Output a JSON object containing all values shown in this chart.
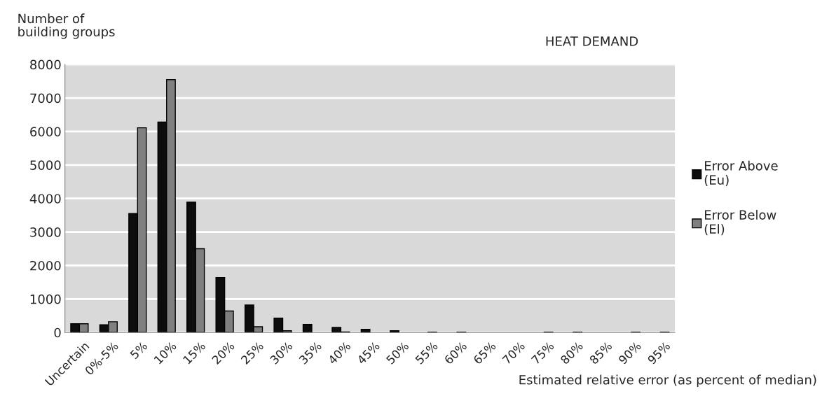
{
  "chart_data": {
    "type": "bar",
    "title": "HEAT DEMAND",
    "ylabel": "Number of\nbuilding groups",
    "xlabel": "Estimated relative error (as percent of median)",
    "categories": [
      "Uncertain",
      "0%-5%",
      "5%",
      "10%",
      "15%",
      "20%",
      "25%",
      "30%",
      "35%",
      "40%",
      "45%",
      "50%",
      "55%",
      "60%",
      "65%",
      "70%",
      "75%",
      "80%",
      "85%",
      "90%",
      "95%"
    ],
    "series": [
      {
        "name": "Error Above\n(Eu)",
        "color": "#0d0d0d",
        "values": [
          260,
          230,
          3550,
          6280,
          3890,
          1640,
          820,
          430,
          240,
          150,
          95,
          50,
          null,
          null,
          null,
          null,
          null,
          null,
          null,
          null,
          null
        ]
      },
      {
        "name": "Error Below\n(El)",
        "color": "#808080",
        "values": [
          260,
          320,
          6110,
          7550,
          2500,
          640,
          170,
          50,
          null,
          15,
          null,
          null,
          10,
          10,
          null,
          null,
          10,
          10,
          null,
          10,
          10
        ]
      }
    ],
    "ylim": [
      0,
      8000
    ],
    "yticks": [
      0,
      1000,
      2000,
      3000,
      4000,
      5000,
      6000,
      7000,
      8000
    ],
    "grid": "y",
    "legend": "right"
  }
}
